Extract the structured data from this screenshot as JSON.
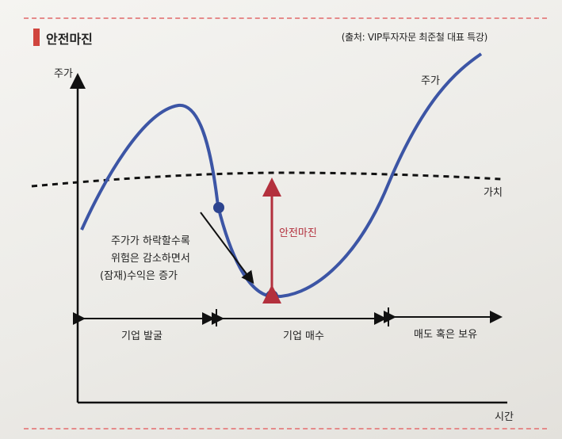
{
  "header": {
    "title": "안전마진",
    "source": "(출처: VIP투자자문 최준철 대표 특강)"
  },
  "axes": {
    "y_label": "주가",
    "x_label": "시간"
  },
  "curve_labels": {
    "price": "주가",
    "value": "가치",
    "margin": "안전마진"
  },
  "annotation": {
    "line1": "주가가 하락할수록",
    "line2": "위험은 감소하면서",
    "line3": "(잠재)수익은 증가"
  },
  "phases": [
    {
      "label": "기업 발굴"
    },
    {
      "label": "기업 매수"
    },
    {
      "label": "매도 혹은 보유"
    }
  ],
  "colors": {
    "price_curve": "#3c55a5",
    "margin_arrow": "#b3303d",
    "accent_bar": "#d0453e",
    "page_dash": "#e58a8a"
  }
}
